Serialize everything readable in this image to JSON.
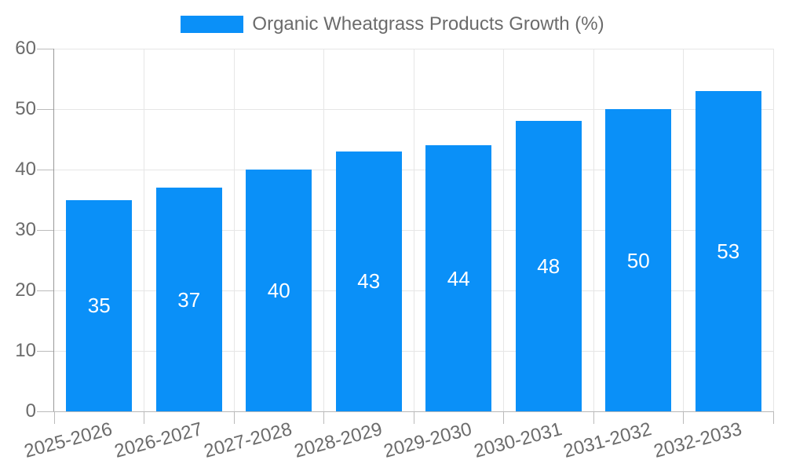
{
  "chart_data": {
    "type": "bar",
    "title": "Organic Wheatgrass Products Growth (%)",
    "categories": [
      "2025-2026",
      "2026-2027",
      "2027-2028",
      "2028-2029",
      "2029-2030",
      "2030-2031",
      "2031-2032",
      "2032-2033"
    ],
    "values": [
      35,
      37,
      40,
      43,
      44,
      48,
      50,
      53
    ],
    "xlabel": "",
    "ylabel": "",
    "ylim": [
      0,
      60
    ],
    "yticks": [
      0,
      10,
      20,
      30,
      40,
      50,
      60
    ],
    "legend_position": "top-center",
    "grid": "horizontal-and-vertical",
    "bar_color": "#0A90F8",
    "bar_label_color": "#ffffff",
    "axis_text_color": "#6b6b6b",
    "grid_color": "#e6e6e6",
    "y_axis_line_color": "#999999",
    "x_axis_line_color": "#b8b8b8",
    "tick_color": "#bbbbbb",
    "x_label_rotation_deg": -15
  }
}
